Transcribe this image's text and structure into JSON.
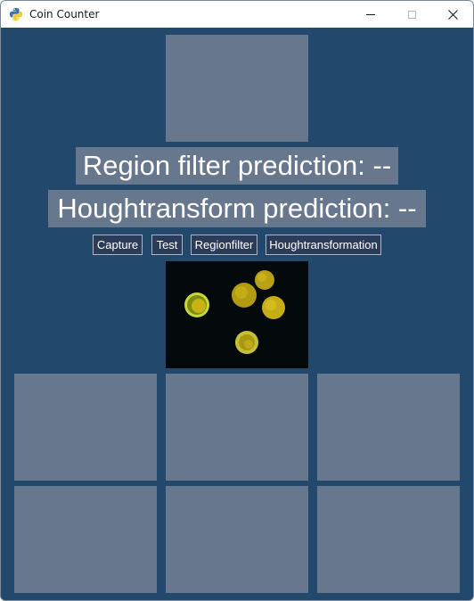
{
  "window": {
    "title": "Coin Counter",
    "icon": "python-icon"
  },
  "titlebar_buttons": {
    "minimize_icon": "minimize-icon",
    "maximize_icon": "maximize-icon",
    "close_icon": "close-icon"
  },
  "predictions": {
    "region_filter": "Region filter prediction: --",
    "houghtransform": "Houghtransform prediction: --"
  },
  "buttons": {
    "capture": "Capture",
    "test": "Test",
    "regionfilter": "Regionfilter",
    "houghtransformation": "Houghtransformation"
  },
  "colors": {
    "background": "#22496b",
    "panel": "#66778e",
    "button": "#2b3b5a",
    "coin": "#d4c21a"
  }
}
